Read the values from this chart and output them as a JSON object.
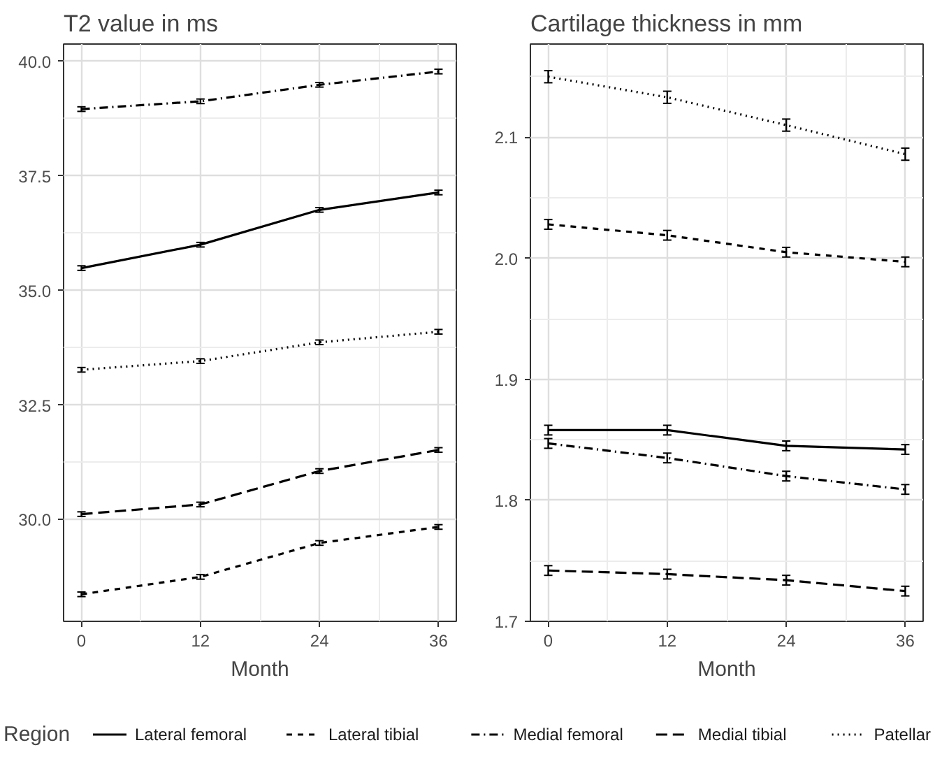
{
  "chart_data": [
    {
      "type": "line",
      "title": "T2 value in ms",
      "xlabel": "Month",
      "x": [
        0,
        12,
        24,
        36
      ],
      "xlim": [
        -1.8,
        37.8
      ],
      "xticks": [
        0,
        12,
        24,
        36
      ],
      "ylim": [
        27.78,
        40.38
      ],
      "yticks": [
        {
          "value": 30,
          "label": "30.0"
        },
        {
          "value": 32.5,
          "label": "32.5"
        },
        {
          "value": 35,
          "label": "35.0"
        },
        {
          "value": 37.5,
          "label": "37.5"
        },
        {
          "value": 40,
          "label": "40.0"
        }
      ],
      "grid": true,
      "legend": "bottom",
      "legend_title": "Region",
      "series": [
        {
          "name": "Lateral femoral",
          "color": "#000000",
          "line_style": "solid",
          "values": [
            35.49,
            36.0,
            36.76,
            37.14
          ],
          "errors": [
            0.05,
            0.05,
            0.05,
            0.05
          ]
        },
        {
          "name": "Lateral tibial",
          "color": "#000000",
          "line_style": "dashed",
          "values": [
            28.37,
            28.75,
            29.49,
            29.84
          ],
          "errors": [
            0.05,
            0.05,
            0.05,
            0.05
          ]
        },
        {
          "name": "Medial femoral",
          "color": "#000000",
          "line_style": "dashdot",
          "values": [
            38.96,
            39.13,
            39.49,
            39.78
          ],
          "errors": [
            0.05,
            0.05,
            0.05,
            0.05
          ]
        },
        {
          "name": "Medial tibial",
          "color": "#000000",
          "line_style": "longdash",
          "values": [
            30.12,
            30.33,
            31.06,
            31.52
          ],
          "errors": [
            0.05,
            0.05,
            0.05,
            0.05
          ]
        },
        {
          "name": "Patellar",
          "color": "#000000",
          "line_style": "dotted",
          "values": [
            33.27,
            33.46,
            33.87,
            34.1
          ],
          "errors": [
            0.05,
            0.05,
            0.05,
            0.05
          ]
        }
      ]
    },
    {
      "type": "line",
      "title": "Cartilage thickness in mm",
      "xlabel": "Month",
      "x": [
        0,
        12,
        24,
        36
      ],
      "xlim": [
        -1.8,
        37.8
      ],
      "xticks": [
        0,
        12,
        24,
        36
      ],
      "ylim": [
        1.7,
        2.177
      ],
      "yticks": [
        1.7,
        1.8,
        1.9,
        {
          "value": 2.0,
          "label": "2.0"
        },
        2.1
      ],
      "grid": true,
      "series": [
        {
          "color": "#000000",
          "line_style": "solid",
          "values": [
            1.858,
            1.858,
            1.845,
            1.842
          ],
          "errors": [
            0.004,
            0.004,
            0.004,
            0.004
          ]
        },
        {
          "color": "#000000",
          "line_style": "dashed",
          "values": [
            2.028,
            2.019,
            2.005,
            1.997
          ],
          "errors": [
            0.004,
            0.004,
            0.004,
            0.004
          ]
        },
        {
          "color": "#000000",
          "line_style": "dashdot",
          "values": [
            1.847,
            1.835,
            1.82,
            1.809
          ],
          "errors": [
            0.004,
            0.004,
            0.004,
            0.004
          ]
        },
        {
          "color": "#000000",
          "line_style": "longdash",
          "values": [
            1.742,
            1.739,
            1.734,
            1.725
          ],
          "errors": [
            0.004,
            0.004,
            0.004,
            0.004
          ]
        },
        {
          "color": "#000000",
          "line_style": "dotted",
          "values": [
            2.15,
            2.133,
            2.11,
            2.086
          ],
          "errors": [
            0.005,
            0.005,
            0.005,
            0.005
          ]
        }
      ]
    }
  ]
}
